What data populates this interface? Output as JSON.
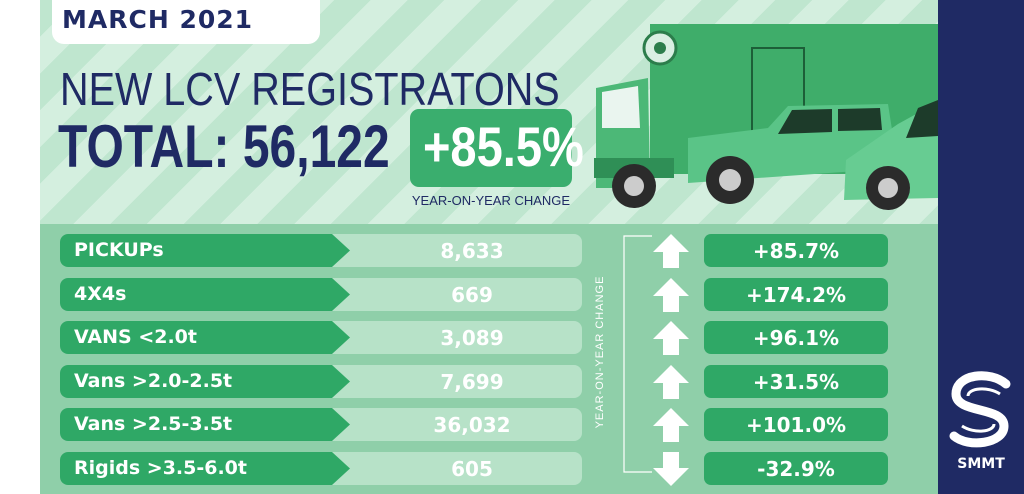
{
  "header": {
    "date": "MARCH 2021",
    "title": "NEW LCV REGISTRATONS",
    "total_label": "TOTAL: 56,122",
    "change_value": "+85.5%",
    "change_caption": "YEAR-ON-YEAR CHANGE"
  },
  "brand": {
    "logo_text": "SMMT"
  },
  "colors": {
    "navy": "#1f2a64",
    "green": "#2fa866",
    "light_green": "#b7e2c8",
    "band_green": "#8fcfa9"
  },
  "chart_data": {
    "type": "table",
    "title": "NEW LCV REGISTRATONS",
    "total": 56122,
    "total_change_pct": 85.5,
    "change_axis_label": "YEAR-ON-YEAR CHANGE",
    "columns": [
      "Category",
      "Registrations",
      "Year-on-year change"
    ],
    "rows": [
      {
        "category": "PICKUPs",
        "value": 8633,
        "value_label": "8,633",
        "change_pct": 85.7,
        "change_label": "+85.7%",
        "direction": "up"
      },
      {
        "category": "4X4s",
        "value": 669,
        "value_label": "669",
        "change_pct": 174.2,
        "change_label": "+174.2%",
        "direction": "up"
      },
      {
        "category": "VANS <2.0t",
        "value": 3089,
        "value_label": "3,089",
        "change_pct": 96.1,
        "change_label": "+96.1%",
        "direction": "up"
      },
      {
        "category": "Vans >2.0-2.5t",
        "value": 7699,
        "value_label": "7,699",
        "change_pct": 31.5,
        "change_label": "+31.5%",
        "direction": "up"
      },
      {
        "category": "Vans >2.5-3.5t",
        "value": 36032,
        "value_label": "36,032",
        "change_pct": 101.0,
        "change_label": "+101.0%",
        "direction": "up"
      },
      {
        "category": "Rigids >3.5-6.0t",
        "value": 605,
        "value_label": "605",
        "change_pct": -32.9,
        "change_label": "-32.9%",
        "direction": "down"
      }
    ]
  }
}
